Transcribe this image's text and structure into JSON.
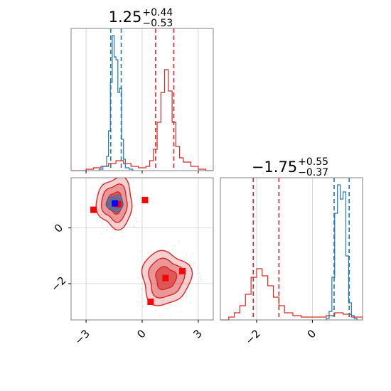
{
  "chart_data": {
    "type": "corner",
    "parameters": [
      {
        "title_value": "1.25",
        "title_plus": "+0.44",
        "title_minus": "−0.53",
        "axis_range": [
          -3.8,
          3.8
        ],
        "ticks": [
          -3,
          0,
          3
        ],
        "tick_labels": [
          "−3",
          "0",
          "3"
        ]
      },
      {
        "title_value": "−1.75",
        "title_plus": "+0.55",
        "title_minus": "−0.37",
        "axis_range": [
          -3.3,
          1.8
        ],
        "ticks": [
          -2,
          0
        ],
        "tick_labels": [
          "−2",
          "0"
        ]
      }
    ],
    "scatter_y_ticks": [
      0,
      -2
    ],
    "scatter_y_tick_labels": [
      "0",
      "−2"
    ],
    "grid": true,
    "series": [
      {
        "color": "#d62728",
        "hist_param1": {
          "bin_edges": [
            -3.8,
            -3.4,
            -3.0,
            -2.6,
            -2.2,
            -1.8,
            -1.4,
            -1.0,
            -0.6,
            -0.2,
            0.2,
            0.4,
            0.6,
            0.8,
            1.0,
            1.2,
            1.4,
            1.6,
            1.8,
            2.0,
            2.2,
            2.6,
            3.0,
            3.4,
            3.8
          ],
          "counts": [
            0,
            0,
            0.01,
            0.02,
            0.03,
            0.05,
            0.07,
            0.05,
            0.03,
            0.02,
            0.03,
            0.07,
            0.15,
            0.34,
            0.55,
            0.71,
            0.56,
            0.34,
            0.17,
            0.09,
            0.06,
            0.03,
            0.01,
            0
          ]
        },
        "hist_param2": {
          "bin_edges": [
            -3.3,
            -3.0,
            -2.8,
            -2.6,
            -2.4,
            -2.2,
            -2.0,
            -1.8,
            -1.6,
            -1.4,
            -1.2,
            -1.0,
            -0.7,
            -0.4,
            -0.1,
            0.2,
            0.5,
            0.8,
            1.1,
            1.4,
            1.8
          ],
          "counts": [
            0,
            0.02,
            0.05,
            0.1,
            0.18,
            0.3,
            0.36,
            0.31,
            0.24,
            0.16,
            0.1,
            0.05,
            0.03,
            0.02,
            0.02,
            0.02,
            0.03,
            0.05,
            0.04,
            0.02
          ]
        },
        "quantiles_param1": [
          0.72,
          1.69
        ],
        "quantiles_param2": [
          -2.12,
          -1.2
        ],
        "modes": [
          {
            "cx": -1.45,
            "cy": 0.9,
            "rx": 0.95,
            "ry": 0.9
          },
          {
            "cx": 1.25,
            "cy": -1.8,
            "rx": 1.3,
            "ry": 0.95
          }
        ],
        "markers": [
          [
            -2.6,
            0.65
          ],
          [
            0.15,
            1.0
          ],
          [
            -1.3,
            0.85
          ],
          [
            2.15,
            -1.55
          ],
          [
            1.25,
            -1.8
          ],
          [
            0.45,
            -2.65
          ]
        ]
      },
      {
        "color": "#1f77b4",
        "hist_param1": {
          "bin_edges": [
            -2.3,
            -2.1,
            -1.9,
            -1.8,
            -1.7,
            -1.6,
            -1.5,
            -1.4,
            -1.3,
            -1.2,
            -1.1,
            -1.0,
            -0.9,
            -0.7,
            -0.5
          ],
          "counts": [
            0.01,
            0.03,
            0.1,
            0.28,
            0.62,
            0.95,
            0.8,
            0.78,
            0.55,
            0.58,
            0.22,
            0.08,
            0.02,
            0.01
          ]
        },
        "hist_param2": {
          "bin_edges": [
            0.5,
            0.6,
            0.7,
            0.8,
            0.9,
            1.0,
            1.1,
            1.2,
            1.3,
            1.4,
            1.5,
            1.6
          ],
          "counts": [
            0.01,
            0.06,
            0.3,
            0.75,
            0.95,
            0.85,
            0.9,
            0.45,
            0.12,
            0.03,
            0.01
          ]
        },
        "quantiles_param1": [
          -1.68,
          -1.12
        ],
        "quantiles_param2": [
          0.78,
          1.32
        ],
        "modes": [
          {
            "cx": -1.45,
            "cy": 0.88,
            "rx": 0.45,
            "ry": 0.28
          }
        ],
        "markers": [
          [
            -1.45,
            0.88
          ]
        ]
      }
    ]
  }
}
